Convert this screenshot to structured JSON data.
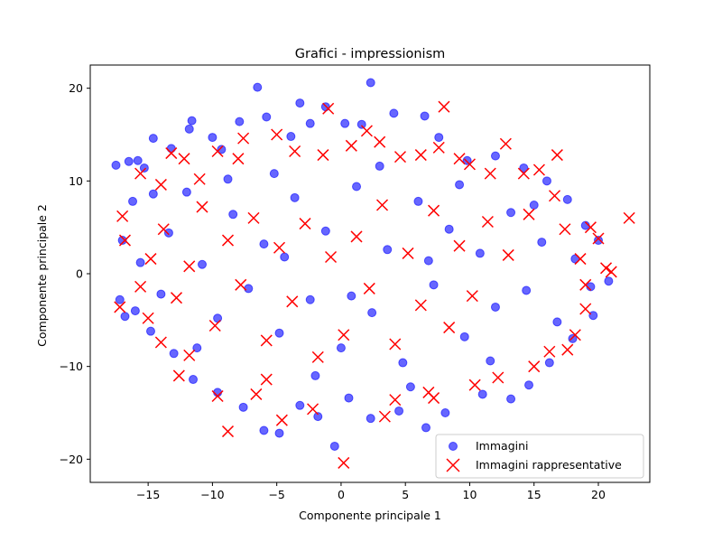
{
  "chart_data": {
    "type": "scatter",
    "title": "Grafici - impressionism",
    "xlabel": "Componente principale 1",
    "ylabel": "Componente principale 2",
    "xlim": [
      -19.5,
      24
    ],
    "ylim": [
      -22.5,
      22.5
    ],
    "xticks": [
      -15,
      -10,
      -5,
      0,
      5,
      10,
      15,
      20
    ],
    "yticks": [
      -20,
      -10,
      0,
      10,
      20
    ],
    "grid": false,
    "legend_position": "lower-right",
    "series": [
      {
        "name": "Immagini",
        "marker": "circle",
        "color": "#0000ff",
        "alpha": 0.6,
        "points": [
          [
            -17.5,
            11.7
          ],
          [
            -17.2,
            -2.8
          ],
          [
            -16.8,
            -4.6
          ],
          [
            -16.5,
            12.1
          ],
          [
            -15.8,
            12.2
          ],
          [
            -15.3,
            11.4
          ],
          [
            -14.6,
            14.6
          ],
          [
            -13.2,
            13.5
          ],
          [
            -11.8,
            15.6
          ],
          [
            -11.6,
            16.5
          ],
          [
            -10,
            14.7
          ],
          [
            -9.3,
            13.4
          ],
          [
            -7.9,
            16.4
          ],
          [
            -6.5,
            20.1
          ],
          [
            -5.8,
            16.9
          ],
          [
            -3.9,
            14.8
          ],
          [
            -3.2,
            18.4
          ],
          [
            -2.4,
            16.2
          ],
          [
            -1.2,
            18.0
          ],
          [
            0.3,
            16.2
          ],
          [
            1.6,
            16.1
          ],
          [
            2.3,
            20.6
          ],
          [
            4.1,
            17.3
          ],
          [
            6.5,
            17.0
          ],
          [
            7.6,
            14.7
          ],
          [
            9.8,
            12.2
          ],
          [
            12.0,
            12.7
          ],
          [
            14.2,
            11.4
          ],
          [
            16.0,
            10.0
          ],
          [
            17.6,
            8.0
          ],
          [
            19.0,
            5.2
          ],
          [
            20.0,
            3.6
          ],
          [
            20.8,
            -0.8
          ],
          [
            19.6,
            -4.5
          ],
          [
            18.0,
            -7.0
          ],
          [
            16.2,
            -9.6
          ],
          [
            14.6,
            -12.0
          ],
          [
            13.2,
            -13.5
          ],
          [
            11.0,
            -13.0
          ],
          [
            8.1,
            -15.0
          ],
          [
            6.6,
            -16.6
          ],
          [
            4.5,
            -14.8
          ],
          [
            2.3,
            -15.6
          ],
          [
            0.6,
            -13.4
          ],
          [
            -0.5,
            -18.6
          ],
          [
            -1.8,
            -15.4
          ],
          [
            -3.2,
            -14.2
          ],
          [
            -4.8,
            -17.2
          ],
          [
            -6.0,
            -16.9
          ],
          [
            -7.6,
            -14.4
          ],
          [
            -9.6,
            -12.8
          ],
          [
            -11.5,
            -11.4
          ],
          [
            -13.0,
            -8.6
          ],
          [
            -14.8,
            -6.2
          ],
          [
            -16.0,
            -4.0
          ],
          [
            -17.0,
            3.6
          ],
          [
            -16.2,
            7.8
          ],
          [
            -15.6,
            1.2
          ],
          [
            -14.0,
            -2.2
          ],
          [
            -13.4,
            4.4
          ],
          [
            -12.0,
            8.8
          ],
          [
            -10.8,
            1.0
          ],
          [
            -9.6,
            -4.8
          ],
          [
            -8.4,
            6.4
          ],
          [
            -7.2,
            -1.6
          ],
          [
            -6.0,
            3.2
          ],
          [
            -4.8,
            -6.4
          ],
          [
            -3.6,
            8.2
          ],
          [
            -2.4,
            -2.8
          ],
          [
            -1.2,
            4.6
          ],
          [
            0.0,
            -8.0
          ],
          [
            1.2,
            9.4
          ],
          [
            2.4,
            -4.2
          ],
          [
            3.6,
            2.6
          ],
          [
            4.8,
            -9.6
          ],
          [
            6.0,
            7.8
          ],
          [
            7.2,
            -1.2
          ],
          [
            8.4,
            4.8
          ],
          [
            9.6,
            -6.8
          ],
          [
            10.8,
            2.2
          ],
          [
            12.0,
            -3.6
          ],
          [
            13.2,
            6.6
          ],
          [
            14.4,
            -1.8
          ],
          [
            15.6,
            3.4
          ],
          [
            16.8,
            -5.2
          ],
          [
            18.2,
            1.6
          ],
          [
            19.4,
            -1.4
          ],
          [
            -11.2,
            -8.0
          ],
          [
            -5.2,
            10.8
          ],
          [
            3.0,
            11.6
          ],
          [
            9.2,
            9.6
          ],
          [
            5.4,
            -12.2
          ],
          [
            -2.0,
            -11.0
          ],
          [
            -8.8,
            10.2
          ],
          [
            11.6,
            -9.4
          ],
          [
            15.0,
            7.4
          ],
          [
            -14.6,
            8.6
          ],
          [
            0.8,
            -2.4
          ],
          [
            6.8,
            1.4
          ],
          [
            -4.4,
            1.8
          ]
        ]
      },
      {
        "name": "Immagini rappresentative",
        "marker": "x",
        "color": "#ff0000",
        "points": [
          [
            -17.2,
            -3.6
          ],
          [
            -17.0,
            6.2
          ],
          [
            -16.8,
            3.6
          ],
          [
            -15.6,
            10.8
          ],
          [
            -15.0,
            -4.8
          ],
          [
            -14.0,
            -7.4
          ],
          [
            -13.2,
            13.0
          ],
          [
            -12.6,
            -11.0
          ],
          [
            -11.8,
            -8.8
          ],
          [
            -12.2,
            12.4
          ],
          [
            -9.6,
            13.2
          ],
          [
            -9.6,
            -13.2
          ],
          [
            -8.8,
            -17.0
          ],
          [
            -8.0,
            12.4
          ],
          [
            -7.6,
            14.6
          ],
          [
            -6.6,
            -13.0
          ],
          [
            -5.8,
            -11.4
          ],
          [
            -5.0,
            15.0
          ],
          [
            -4.6,
            -15.8
          ],
          [
            -3.6,
            13.2
          ],
          [
            -2.2,
            -14.6
          ],
          [
            -1.4,
            12.8
          ],
          [
            -1.0,
            17.8
          ],
          [
            0.2,
            -20.4
          ],
          [
            0.8,
            13.8
          ],
          [
            2.0,
            15.4
          ],
          [
            3.0,
            14.2
          ],
          [
            3.4,
            -15.4
          ],
          [
            4.2,
            -13.6
          ],
          [
            4.6,
            12.6
          ],
          [
            6.2,
            12.8
          ],
          [
            6.8,
            -12.8
          ],
          [
            7.2,
            -13.4
          ],
          [
            7.6,
            13.6
          ],
          [
            8.0,
            18.0
          ],
          [
            9.2,
            12.4
          ],
          [
            10.0,
            11.8
          ],
          [
            10.4,
            -12.0
          ],
          [
            11.6,
            10.8
          ],
          [
            12.2,
            -11.2
          ],
          [
            12.8,
            14.0
          ],
          [
            14.2,
            10.8
          ],
          [
            15.0,
            -10.0
          ],
          [
            15.4,
            11.2
          ],
          [
            16.2,
            -8.4
          ],
          [
            16.8,
            12.8
          ],
          [
            16.6,
            8.4
          ],
          [
            17.6,
            -8.2
          ],
          [
            18.2,
            -6.6
          ],
          [
            19.0,
            -3.8
          ],
          [
            19.0,
            -1.2
          ],
          [
            19.4,
            5.0
          ],
          [
            20.0,
            3.8
          ],
          [
            20.6,
            0.6
          ],
          [
            21.0,
            0.2
          ],
          [
            22.4,
            6.0
          ],
          [
            18.6,
            1.6
          ],
          [
            17.4,
            4.8
          ],
          [
            14.6,
            6.4
          ],
          [
            13.0,
            2.0
          ],
          [
            11.4,
            5.6
          ],
          [
            10.2,
            -2.4
          ],
          [
            9.2,
            3.0
          ],
          [
            8.4,
            -5.8
          ],
          [
            7.2,
            6.8
          ],
          [
            6.2,
            -3.4
          ],
          [
            5.2,
            2.2
          ],
          [
            4.2,
            -7.6
          ],
          [
            3.2,
            7.4
          ],
          [
            2.2,
            -1.6
          ],
          [
            1.2,
            4.0
          ],
          [
            0.2,
            -6.6
          ],
          [
            -0.8,
            1.8
          ],
          [
            -1.8,
            -9.0
          ],
          [
            -2.8,
            5.4
          ],
          [
            -3.8,
            -3.0
          ],
          [
            -4.8,
            2.8
          ],
          [
            -5.8,
            -7.2
          ],
          [
            -6.8,
            6.0
          ],
          [
            -7.8,
            -1.2
          ],
          [
            -8.8,
            3.6
          ],
          [
            -9.8,
            -5.6
          ],
          [
            -10.8,
            7.2
          ],
          [
            -11.8,
            0.8
          ],
          [
            -12.8,
            -2.6
          ],
          [
            -13.8,
            4.8
          ],
          [
            -14.8,
            1.6
          ],
          [
            -15.6,
            -1.4
          ],
          [
            -14.0,
            9.6
          ],
          [
            -11.0,
            10.2
          ]
        ]
      }
    ]
  }
}
